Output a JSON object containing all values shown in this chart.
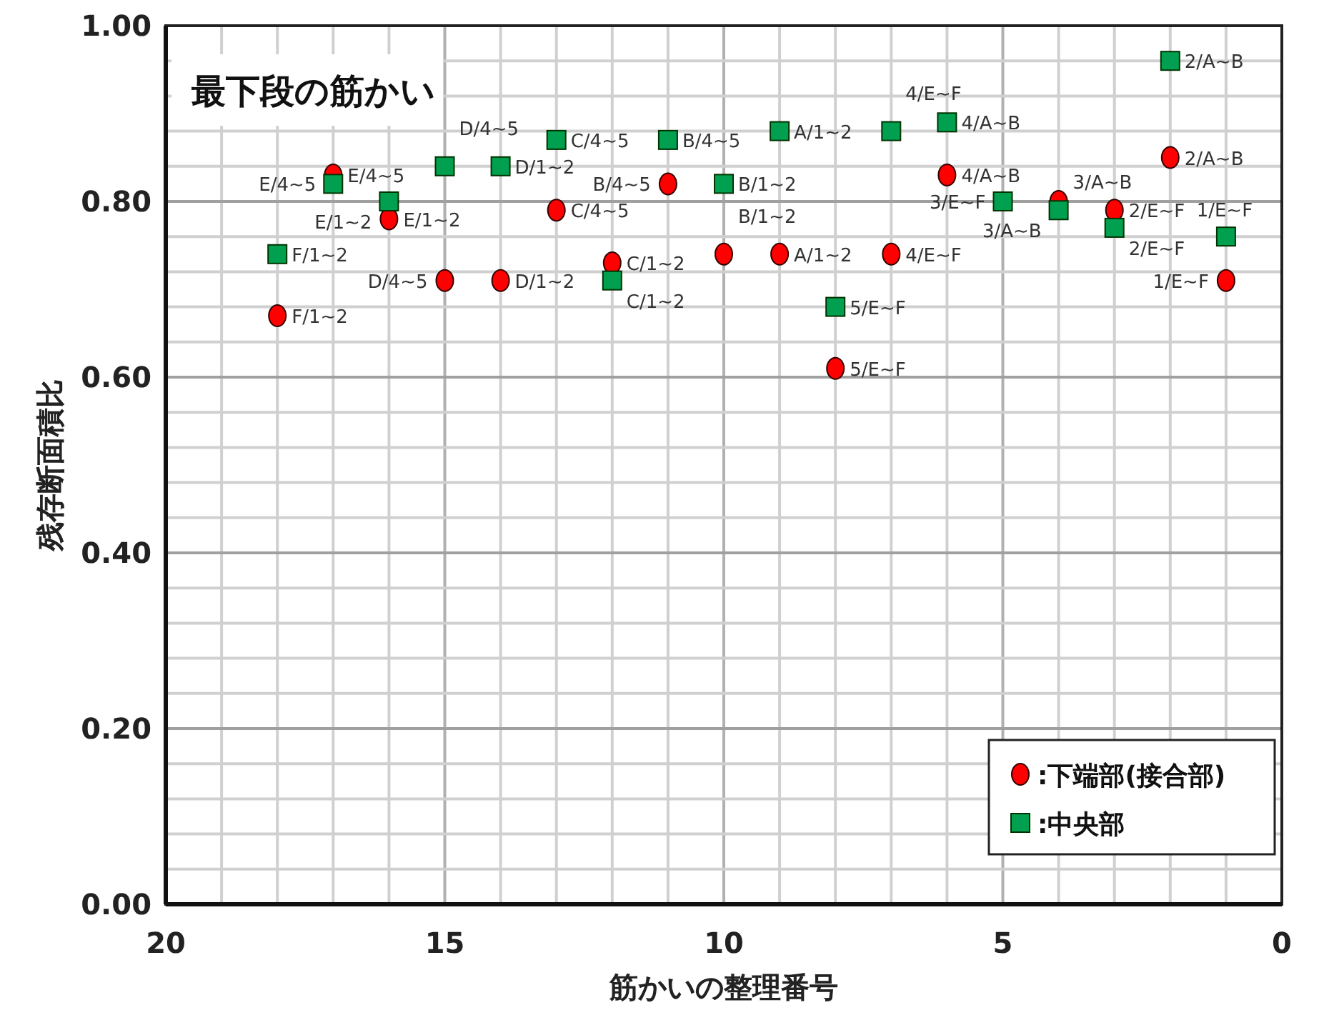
{
  "chart_data": {
    "type": "scatter",
    "title": "最下段の筋かい",
    "xlabel": "筋かいの整理番号",
    "ylabel": "残存断面積比",
    "xlim": [
      20,
      0
    ],
    "ylim": [
      0,
      1
    ],
    "xticks": [
      0,
      {
        "value": 1,
        "label": null
      },
      {
        "value": 2,
        "label": null
      },
      {
        "value": 3,
        "label": null
      },
      {
        "value": 4,
        "label": null
      },
      5,
      {
        "value": 6,
        "label": null
      },
      {
        "value": 7,
        "label": null
      },
      {
        "value": 8,
        "label": null
      },
      {
        "value": 9,
        "label": null
      },
      10,
      {
        "value": 11,
        "label": null
      },
      {
        "value": 12,
        "label": null
      },
      {
        "value": 13,
        "label": null
      },
      {
        "value": 14,
        "label": null
      },
      15,
      {
        "value": 16,
        "label": null
      },
      {
        "value": 17,
        "label": null
      },
      {
        "value": 18,
        "label": null
      },
      {
        "value": 19,
        "label": null
      },
      20
    ],
    "yticks": [
      {
        "value": 0,
        "label": "0.00"
      },
      {
        "value": 0.04,
        "label": null
      },
      {
        "value": 0.08,
        "label": null
      },
      {
        "value": 0.12,
        "label": null
      },
      {
        "value": 0.16,
        "label": null
      },
      {
        "value": 0.2,
        "label": "0.20"
      },
      {
        "value": 0.24,
        "label": null
      },
      {
        "value": 0.28,
        "label": null
      },
      {
        "value": 0.32,
        "label": null
      },
      {
        "value": 0.36,
        "label": null
      },
      {
        "value": 0.4,
        "label": "0.40"
      },
      {
        "value": 0.44,
        "label": null
      },
      {
        "value": 0.48,
        "label": null
      },
      {
        "value": 0.52,
        "label": null
      },
      {
        "value": 0.56,
        "label": null
      },
      {
        "value": 0.6,
        "label": "0.60"
      },
      {
        "value": 0.64,
        "label": null
      },
      {
        "value": 0.68,
        "label": null
      },
      {
        "value": 0.72,
        "label": null
      },
      {
        "value": 0.76,
        "label": null
      },
      {
        "value": 0.8,
        "label": "0.80"
      },
      {
        "value": 0.84,
        "label": null
      },
      {
        "value": 0.88,
        "label": null
      },
      {
        "value": 0.92,
        "label": null
      },
      {
        "value": 0.96,
        "label": null
      },
      {
        "value": 1,
        "label": "1.00"
      }
    ],
    "grid": true,
    "legend": "bottom right",
    "series": [
      {
        "name": ":下端部(接合部)",
        "color": "#ff0000",
        "marker": "circle",
        "x": [
          18,
          17,
          16,
          15,
          14,
          13,
          12,
          11,
          10,
          9,
          8,
          7,
          6,
          4,
          3,
          2,
          1
        ],
        "values": [
          0.67,
          0.83,
          0.78,
          0.71,
          0.71,
          0.79,
          0.73,
          0.82,
          0.74,
          0.74,
          0.61,
          0.74,
          0.83,
          0.8,
          0.79,
          0.85,
          0.71
        ]
      },
      {
        "name": ":中央部",
        "color": "#00a050",
        "marker": "square",
        "x": [
          18,
          17,
          16,
          15,
          14,
          13,
          12,
          11,
          10,
          9,
          8,
          7,
          6,
          5,
          4,
          3,
          2,
          1
        ],
        "values": [
          0.74,
          0.82,
          0.8,
          0.84,
          0.84,
          0.87,
          0.71,
          0.87,
          0.82,
          0.88,
          0.68,
          0.88,
          0.89,
          0.8,
          0.79,
          0.77,
          0.96,
          0.76
        ]
      }
    ],
    "annotations": [
      {
        "text": "F/1~2",
        "x": 18,
        "y": 0.67
      },
      {
        "text": "E/4~5",
        "x": 17,
        "y": 0.83
      },
      {
        "text": "E/1~2",
        "x": 16,
        "y": 0.78
      },
      {
        "text": "D/4~5",
        "x": 15,
        "y": 0.71
      },
      {
        "text": "D/1~2",
        "x": 14,
        "y": 0.71
      },
      {
        "text": "C/4~5",
        "x": 13,
        "y": 0.79
      },
      {
        "text": "C/1~2",
        "x": 12,
        "y": 0.73
      },
      {
        "text": "B/4~5",
        "x": 11,
        "y": 0.82
      },
      {
        "text": "B/1~2",
        "x": 10,
        "y": 0.74
      },
      {
        "text": "A/1~2",
        "x": 9,
        "y": 0.74
      },
      {
        "text": "5/E~F",
        "x": 8,
        "y": 0.61
      },
      {
        "text": "4/E~F",
        "x": 7,
        "y": 0.74
      },
      {
        "text": "4/A~B",
        "x": 6,
        "y": 0.83
      },
      {
        "text": "3/A~B",
        "x": 4,
        "y": 0.8
      },
      {
        "text": "2/E~F",
        "x": 3,
        "y": 0.79
      },
      {
        "text": "2/A~B",
        "x": 2,
        "y": 0.85
      },
      {
        "text": "1/E~F",
        "x": 1,
        "y": 0.71
      },
      {
        "text": "F/1~2",
        "x": 18,
        "y": 0.74
      },
      {
        "text": "E/4~5",
        "x": 17,
        "y": 0.82
      },
      {
        "text": "E/1~2",
        "x": 16,
        "y": 0.8
      },
      {
        "text": "D/4~5",
        "x": 15,
        "y": 0.84
      },
      {
        "text": "D/1~2",
        "x": 14,
        "y": 0.84
      },
      {
        "text": "C/4~5",
        "x": 13,
        "y": 0.87
      },
      {
        "text": "C/1~2",
        "x": 12,
        "y": 0.71
      },
      {
        "text": "B/4~5",
        "x": 11,
        "y": 0.87
      },
      {
        "text": "B/1~2",
        "x": 10,
        "y": 0.82
      },
      {
        "text": "A/1~2",
        "x": 9,
        "y": 0.88
      },
      {
        "text": "5/E~F",
        "x": 8,
        "y": 0.68
      },
      {
        "text": "4/E~F",
        "x": 7,
        "y": 0.88
      },
      {
        "text": "4/A~B",
        "x": 6,
        "y": 0.89
      },
      {
        "text": "3/E~F",
        "x": 5,
        "y": 0.8
      },
      {
        "text": "3/A~B",
        "x": 4,
        "y": 0.79
      },
      {
        "text": "2/E~F",
        "x": 3,
        "y": 0.77
      },
      {
        "text": "2/A~B",
        "x": 2,
        "y": 0.96
      },
      {
        "text": "1/E~F",
        "x": 1,
        "y": 0.76
      }
    ]
  }
}
